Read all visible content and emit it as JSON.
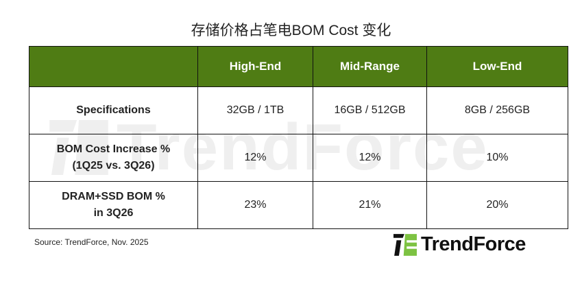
{
  "title": "存储价格占笔电BOM Cost 变化",
  "chart_data": {
    "type": "table",
    "title": "存储价格占笔电BOM Cost 变化",
    "columns": [
      "",
      "High-End",
      "Mid-Range",
      "Low-End"
    ],
    "rows": [
      {
        "label": "Specifications",
        "label2": "",
        "values": [
          "32GB / 1TB",
          "16GB / 512GB",
          "8GB / 256GB"
        ]
      },
      {
        "label": "BOM Cost Increase %",
        "label2": "(1Q25 vs. 3Q26)",
        "values": [
          "12%",
          "12%",
          "10%"
        ]
      },
      {
        "label": "DRAM+SSD BOM %",
        "label2": "in 3Q26",
        "values": [
          "23%",
          "21%",
          "20%"
        ]
      }
    ]
  },
  "colors": {
    "header_bg": "#4f7c14",
    "header_text": "#ffffff",
    "logo_green": "#7dc242"
  },
  "source": "Source: TrendForce, Nov. 2025",
  "logo": {
    "text": "TrendForce"
  },
  "watermark": "TrendForce"
}
